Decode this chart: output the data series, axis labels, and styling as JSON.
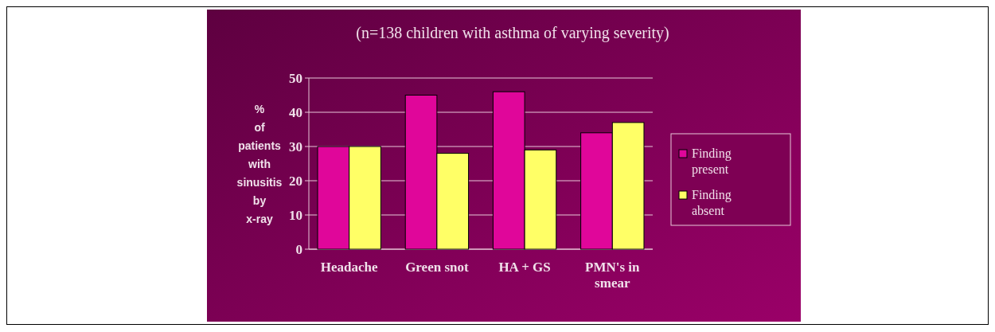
{
  "chart_data": {
    "type": "bar",
    "title": "(n=138 children with asthma of varying severity)",
    "ylabel": "% of patients with sinusitis by x-ray",
    "categories": [
      "Headache",
      "Green snot",
      "HA + GS",
      "PMN's in smear"
    ],
    "series": [
      {
        "name": "Finding present",
        "color": "#e0069a",
        "values": [
          30,
          45,
          46,
          34
        ]
      },
      {
        "name": "Finding absent",
        "color": "#ffff66",
        "values": [
          30,
          28,
          29,
          37
        ]
      }
    ],
    "ylim": [
      0,
      50
    ],
    "yticks": [
      0,
      10,
      20,
      30,
      40,
      50
    ],
    "grid": "y",
    "legend": "right"
  }
}
